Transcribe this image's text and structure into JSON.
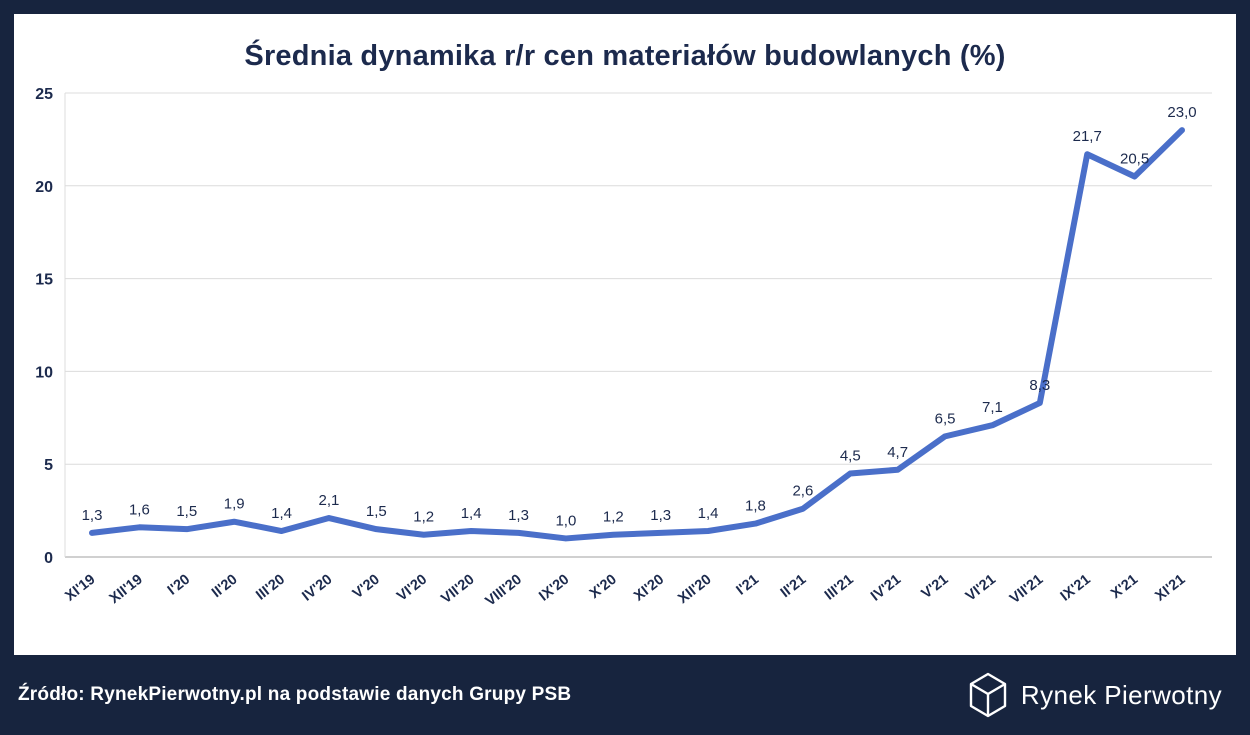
{
  "footer": {
    "source": "Źródło: RynekPierwotny.pl na podstawie danych Grupy PSB",
    "logo_text": "Rynek Pierwotny"
  },
  "colors": {
    "background": "#17243e",
    "chart_bg": "#ffffff",
    "line": "#4a6fc9",
    "text_dark": "#1c2a4d",
    "grid": "#dcdcdc",
    "axis": "#c0c0c0"
  },
  "chart_data": {
    "type": "line",
    "title": "Średnia dynamika r/r cen materiałów budowlanych (%)",
    "categories": [
      "XI'19",
      "XII'19",
      "I'20",
      "II'20",
      "III'20",
      "IV'20",
      "V'20",
      "VI'20",
      "VII'20",
      "VIII'20",
      "IX'20",
      "X'20",
      "XI'20",
      "XII'20",
      "I'21",
      "II'21",
      "III'21",
      "IV'21",
      "V'21",
      "VI'21",
      "VII'21",
      "IX'21",
      "X'21",
      "XI'21"
    ],
    "values": [
      1.3,
      1.6,
      1.5,
      1.9,
      1.4,
      2.1,
      1.5,
      1.2,
      1.4,
      1.3,
      1.0,
      1.2,
      1.3,
      1.4,
      1.8,
      2.6,
      4.5,
      4.7,
      6.5,
      7.1,
      8.3,
      21.7,
      20.5,
      23.0
    ],
    "value_labels": [
      "1,3",
      "1,6",
      "1,5",
      "1,9",
      "1,4",
      "2,1",
      "1,5",
      "1,2",
      "1,4",
      "1,3",
      "1,0",
      "1,2",
      "1,3",
      "1,4",
      "1,8",
      "2,6",
      "4,5",
      "4,7",
      "6,5",
      "7,1",
      "8,3",
      "21,7",
      "20,5",
      "23,0"
    ],
    "xlabel": "",
    "ylabel": "",
    "ylim": [
      0,
      25
    ],
    "yticks": [
      0,
      5,
      10,
      15,
      20,
      25
    ],
    "grid": true,
    "legend": "none"
  }
}
